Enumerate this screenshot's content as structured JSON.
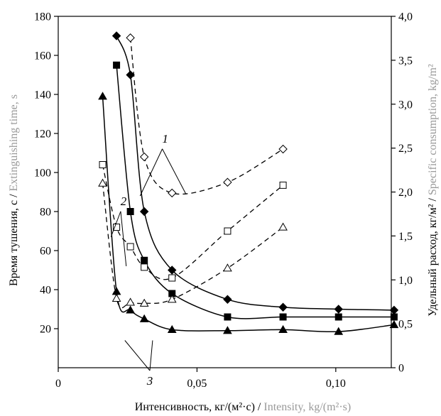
{
  "chart_data": {
    "type": "line",
    "xlabel_ru": "Интенсивность, кг/(м²·с)",
    "xlabel_sep": " / ",
    "xlabel_en": "Intensity, kg/(m²·s)",
    "ylabel_left_ru": "Время тушения, с",
    "ylabel_left_sep": " / ",
    "ylabel_left_en": "Extinguishing time, s",
    "ylabel_right_ru": "Удельный расход, кг/м²",
    "ylabel_right_sep": " / ",
    "ylabel_right_en": "Specific consumption, kg/m²",
    "xlim": [
      0,
      0.12
    ],
    "ylim_left": [
      0,
      180
    ],
    "ylim_right": [
      0,
      4.0
    ],
    "x_ticks": [
      {
        "value": 0,
        "label": "0"
      },
      {
        "value": 0.05,
        "label": "0,05"
      },
      {
        "value": 0.1,
        "label": "0,10"
      }
    ],
    "y_left_ticks": [
      {
        "value": 20,
        "label": "20"
      },
      {
        "value": 40,
        "label": "40"
      },
      {
        "value": 60,
        "label": "60"
      },
      {
        "value": 80,
        "label": "80"
      },
      {
        "value": 100,
        "label": "100"
      },
      {
        "value": 120,
        "label": "120"
      },
      {
        "value": 140,
        "label": "140"
      },
      {
        "value": 160,
        "label": "160"
      },
      {
        "value": 180,
        "label": "180"
      }
    ],
    "y_right_ticks": [
      {
        "value": 0,
        "label": "0"
      },
      {
        "value": 0.5,
        "label": "0,5"
      },
      {
        "value": 1.0,
        "label": "1,0"
      },
      {
        "value": 1.5,
        "label": "1,5"
      },
      {
        "value": 2.0,
        "label": "2,0"
      },
      {
        "value": 2.5,
        "label": "2,5"
      },
      {
        "value": 3.0,
        "label": "3,0"
      },
      {
        "value": 3.5,
        "label": "3,5"
      },
      {
        "value": 4.0,
        "label": "4,0"
      }
    ],
    "series": [
      {
        "id": "t1",
        "axis": "left",
        "marker": "diamond",
        "filled": true,
        "dashed": false,
        "points": [
          [
            0.021,
            170
          ],
          [
            0.026,
            150
          ],
          [
            0.031,
            80
          ],
          [
            0.041,
            50
          ],
          [
            0.061,
            35
          ],
          [
            0.081,
            31
          ],
          [
            0.101,
            30
          ],
          [
            0.121,
            29.5
          ]
        ]
      },
      {
        "id": "t2",
        "axis": "left",
        "marker": "square",
        "filled": true,
        "dashed": false,
        "points": [
          [
            0.021,
            155
          ],
          [
            0.026,
            80
          ],
          [
            0.031,
            55
          ],
          [
            0.041,
            38
          ],
          [
            0.061,
            26
          ],
          [
            0.081,
            26
          ],
          [
            0.101,
            26
          ],
          [
            0.121,
            26
          ]
        ]
      },
      {
        "id": "t3",
        "axis": "left",
        "marker": "triangle",
        "filled": true,
        "dashed": false,
        "points": [
          [
            0.016,
            139
          ],
          [
            0.021,
            39
          ],
          [
            0.026,
            29.5
          ],
          [
            0.031,
            25
          ],
          [
            0.041,
            19.5
          ],
          [
            0.061,
            19
          ],
          [
            0.081,
            19.5
          ],
          [
            0.101,
            18.5
          ],
          [
            0.121,
            22
          ]
        ]
      },
      {
        "id": "s1",
        "axis": "left",
        "marker": "diamond",
        "filled": false,
        "dashed": true,
        "points": [
          [
            0.026,
            169
          ],
          [
            0.031,
            108
          ],
          [
            0.041,
            89.5
          ],
          [
            0.061,
            95
          ],
          [
            0.081,
            112
          ]
        ]
      },
      {
        "id": "s2",
        "axis": "left",
        "marker": "square",
        "filled": false,
        "dashed": true,
        "points": [
          [
            0.016,
            104
          ],
          [
            0.021,
            72
          ],
          [
            0.026,
            62
          ],
          [
            0.031,
            51.5
          ],
          [
            0.041,
            46
          ],
          [
            0.061,
            70
          ],
          [
            0.081,
            93.5
          ]
        ]
      },
      {
        "id": "s3",
        "axis": "left",
        "marker": "triangle",
        "filled": false,
        "dashed": true,
        "points": [
          [
            0.016,
            94.5
          ],
          [
            0.021,
            35.5
          ],
          [
            0.026,
            33.5
          ],
          [
            0.031,
            33
          ],
          [
            0.041,
            35
          ],
          [
            0.061,
            51
          ],
          [
            0.081,
            72
          ]
        ]
      }
    ],
    "annotations": [
      {
        "label": "1",
        "text_at": [
          0.0375,
          115
        ],
        "points_to": [
          [
            0.0295,
            88
          ],
          [
            0.046,
            89
          ]
        ]
      },
      {
        "label": "2",
        "text_at": [
          0.0225,
          83
        ],
        "points_to": [
          [
            0.019,
            67
          ],
          [
            0.0245,
            52
          ]
        ]
      },
      {
        "label": "3",
        "text_at": [
          0.033,
          0
        ],
        "points_to": [
          [
            0.024,
            14
          ],
          [
            0.034,
            14
          ]
        ]
      }
    ]
  }
}
